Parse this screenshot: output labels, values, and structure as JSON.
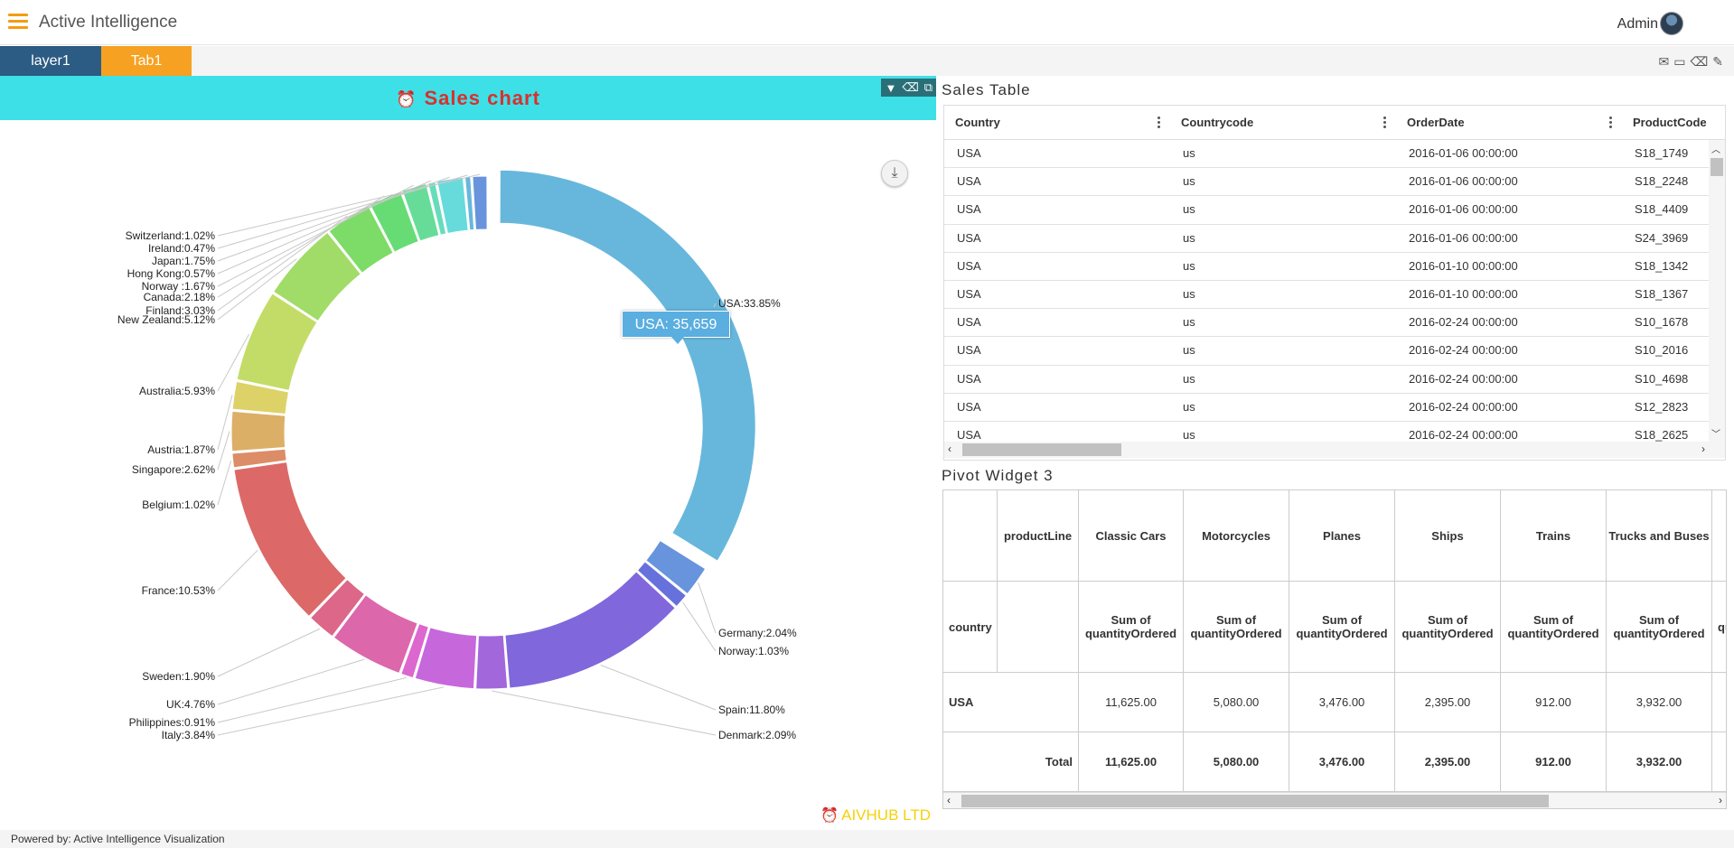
{
  "app": {
    "title": "Active Intelligence",
    "user": "Admin",
    "footer": "Powered by: Active Intelligence Visualization"
  },
  "tabs": [
    {
      "label": "layer1",
      "color": "#2c5b83"
    },
    {
      "label": "Tab1",
      "color": "#f6a121"
    }
  ],
  "chart_panel": {
    "title": "Sales chart",
    "brand": "AIVHUB LTD",
    "tooltip": "USA: 35,659"
  },
  "chart_data": {
    "type": "pie",
    "variant": "donut",
    "title": "Sales chart",
    "slices": [
      {
        "label": "USA",
        "value": 33.85,
        "color": "#67b7dc"
      },
      {
        "label": "Germany",
        "value": 2.04,
        "color": "#6794dc"
      },
      {
        "label": "Norway",
        "value": 1.03,
        "color": "#6771dc"
      },
      {
        "label": "Spain",
        "value": 11.8,
        "color": "#8067dc"
      },
      {
        "label": "Denmark",
        "value": 2.09,
        "color": "#a367dc"
      },
      {
        "label": "Italy",
        "value": 3.84,
        "color": "#c767dc"
      },
      {
        "label": "Philippines",
        "value": 0.91,
        "color": "#dc67ce"
      },
      {
        "label": "UK",
        "value": 4.76,
        "color": "#dc67ab"
      },
      {
        "label": "Sweden",
        "value": 1.9,
        "color": "#dc6788"
      },
      {
        "label": "France",
        "value": 10.53,
        "color": "#dc6967"
      },
      {
        "label": "Belgium",
        "value": 1.02,
        "color": "#dc8c67"
      },
      {
        "label": "Singapore",
        "value": 2.62,
        "color": "#dcaf67"
      },
      {
        "label": "Austria",
        "value": 1.87,
        "color": "#dcd267"
      },
      {
        "label": "Australia",
        "value": 5.93,
        "color": "#c3dc67"
      },
      {
        "label": "New Zealand",
        "value": 5.12,
        "color": "#a0dc67"
      },
      {
        "label": "Finland",
        "value": 3.03,
        "color": "#7ddc67"
      },
      {
        "label": "Canada",
        "value": 2.18,
        "color": "#67dc75"
      },
      {
        "label": "Norway ",
        "value": 1.67,
        "color": "#67dc98"
      },
      {
        "label": "Hong Kong",
        "value": 0.57,
        "color": "#67dcbb"
      },
      {
        "label": "Japan",
        "value": 1.75,
        "color": "#67dadc"
      },
      {
        "label": "Ireland",
        "value": 0.47,
        "color": "#67b7dc"
      },
      {
        "label": "Switzerland",
        "value": 1.02,
        "color": "#6794dc"
      }
    ],
    "labels": [
      "USA:33.85%",
      "Germany:2.04%",
      "Norway:1.03%",
      "Spain:11.80%",
      "Denmark:2.09%",
      "Italy:3.84%",
      "Philippines:0.91%",
      "UK:4.76%",
      "Sweden:1.90%",
      "France:10.53%",
      "Belgium:1.02%",
      "Singapore:2.62%",
      "Austria:1.87%",
      "Australia:5.93%",
      "New Zealand:5.12%",
      "Finland:3.03%",
      "Canada:2.18%",
      "Norway :1.67%",
      "Hong Kong:0.57%",
      "Japan:1.75%",
      "Ireland:0.47%",
      "Switzerland:1.02%"
    ]
  },
  "sales_table": {
    "title": "Sales Table",
    "columns": [
      "Country",
      "Countrycode",
      "OrderDate",
      "ProductCode"
    ],
    "rows": [
      [
        "USA",
        "us",
        "2016-01-06 00:00:00",
        "S18_1749"
      ],
      [
        "USA",
        "us",
        "2016-01-06 00:00:00",
        "S18_2248"
      ],
      [
        "USA",
        "us",
        "2016-01-06 00:00:00",
        "S18_4409"
      ],
      [
        "USA",
        "us",
        "2016-01-06 00:00:00",
        "S24_3969"
      ],
      [
        "USA",
        "us",
        "2016-01-10 00:00:00",
        "S18_1342"
      ],
      [
        "USA",
        "us",
        "2016-01-10 00:00:00",
        "S18_1367"
      ],
      [
        "USA",
        "us",
        "2016-02-24 00:00:00",
        "S10_1678"
      ],
      [
        "USA",
        "us",
        "2016-02-24 00:00:00",
        "S10_2016"
      ],
      [
        "USA",
        "us",
        "2016-02-24 00:00:00",
        "S10_4698"
      ],
      [
        "USA",
        "us",
        "2016-02-24 00:00:00",
        "S12_2823"
      ],
      [
        "USA",
        "us",
        "2016-02-24 00:00:00",
        "S18_2625"
      ]
    ]
  },
  "pivot": {
    "title": "Pivot Widget 3",
    "row_field": "productLine",
    "col_field": "country",
    "product_lines": [
      "Classic Cars",
      "Motorcycles",
      "Planes",
      "Ships",
      "Trains",
      "Trucks and Buses"
    ],
    "measure": "Sum of quantityOrdered",
    "measure_cut": "qu",
    "rows": [
      {
        "label": "USA",
        "values": [
          "11,625.00",
          "5,080.00",
          "3,476.00",
          "2,395.00",
          "912.00",
          "3,932.00"
        ]
      }
    ],
    "total": {
      "label": "Total",
      "values": [
        "11,625.00",
        "5,080.00",
        "3,476.00",
        "2,395.00",
        "912.00",
        "3,932.00"
      ]
    }
  }
}
